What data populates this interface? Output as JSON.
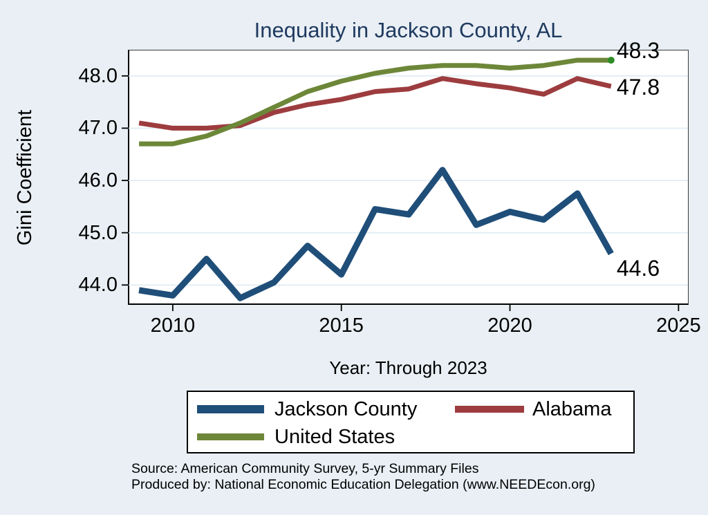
{
  "chart_data": {
    "type": "line",
    "title": "Inequality in Jackson County, AL",
    "xlabel": "Year: Through 2023",
    "ylabel": "Gini Coefficient",
    "x": [
      2009,
      2010,
      2011,
      2012,
      2013,
      2014,
      2015,
      2016,
      2017,
      2018,
      2019,
      2020,
      2021,
      2022,
      2023
    ],
    "series": [
      {
        "name": "Jackson County",
        "color": "#1f4e79",
        "line_width": 9,
        "end_label": "44.6",
        "values": [
          43.9,
          43.8,
          44.5,
          43.75,
          44.05,
          44.75,
          44.2,
          45.45,
          45.35,
          46.2,
          45.15,
          45.4,
          45.25,
          45.75,
          44.6
        ]
      },
      {
        "name": "Alabama",
        "color": "#9d3c3e",
        "line_width": 7,
        "end_label": "47.8",
        "values": [
          47.1,
          47.0,
          47.0,
          47.05,
          47.3,
          47.45,
          47.55,
          47.7,
          47.75,
          47.95,
          47.85,
          47.77,
          47.65,
          47.95,
          47.8
        ]
      },
      {
        "name": "United States",
        "color": "#6d8739",
        "line_width": 7,
        "end_label": "48.3",
        "end_marker_color": "#2e8b26",
        "values": [
          46.7,
          46.7,
          46.85,
          47.1,
          47.4,
          47.7,
          47.9,
          48.05,
          48.15,
          48.2,
          48.2,
          48.15,
          48.2,
          48.3,
          48.3
        ]
      }
    ],
    "yticks": [
      "44.0",
      "45.0",
      "46.0",
      "47.0",
      "48.0"
    ],
    "xticks": [
      "2010",
      "2015",
      "2020",
      "2025"
    ],
    "ylim": [
      43.62,
      48.5
    ],
    "xlim": [
      2008.67,
      2025.3
    ],
    "grid": true,
    "gridline_color": "#dfecf2",
    "legend_position": "bottom"
  },
  "source_lines": {
    "source": "Source: American Community Survey, 5-yr Summary Files",
    "produced_by": "Produced by: National Economic Education Delegation (www.NEEDEcon.org)"
  }
}
